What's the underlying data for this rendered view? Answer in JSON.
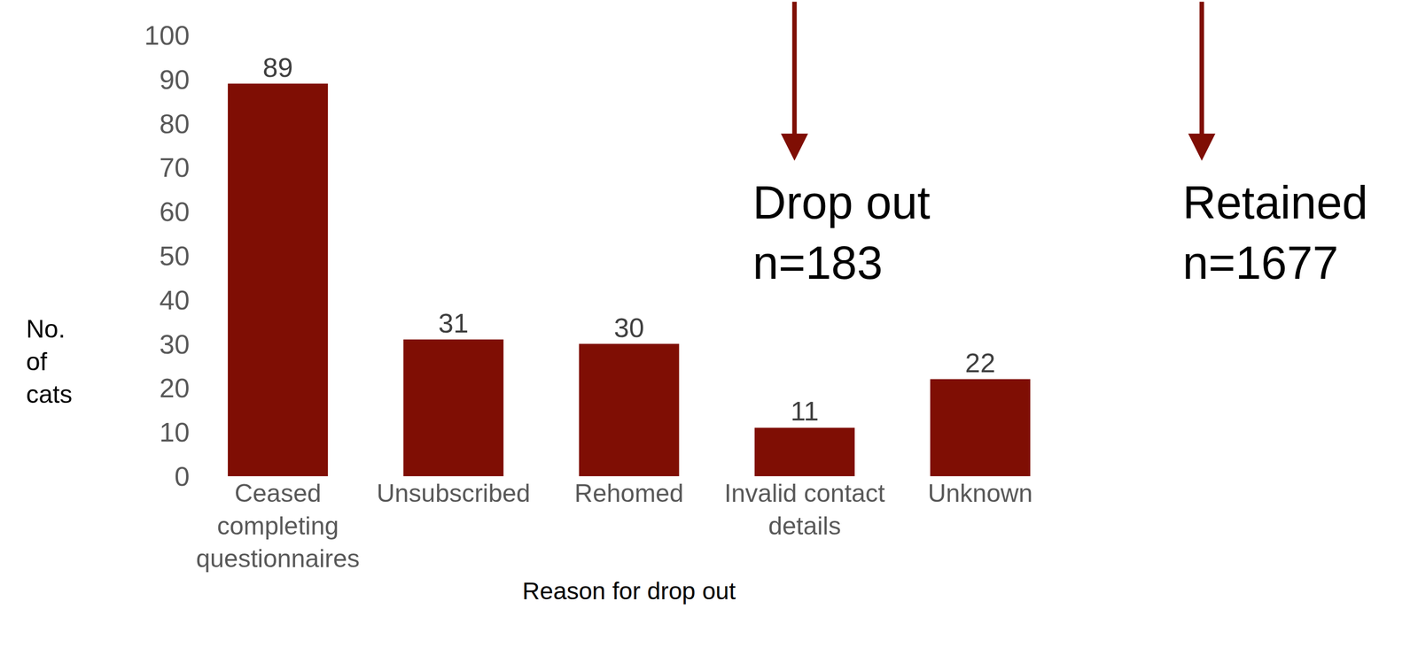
{
  "chart_data": {
    "type": "bar",
    "categories": [
      "Ceased completing questionnaires",
      "Unsubscribed",
      "Rehomed",
      "Invalid contact details",
      "Unknown"
    ],
    "values": [
      89,
      31,
      30,
      11,
      22
    ],
    "color": "#7f0e04",
    "xlabel": "Reason for drop out",
    "ylabel": "No. of cats",
    "ylim": [
      0,
      100
    ],
    "yticks": [
      0,
      10,
      20,
      30,
      40,
      50,
      60,
      70,
      80,
      90,
      100
    ],
    "grid": false,
    "data_labels": true,
    "annotations": [
      [
        "Drop out",
        "n=183"
      ],
      [
        "Retained",
        "n=1677"
      ]
    ]
  }
}
